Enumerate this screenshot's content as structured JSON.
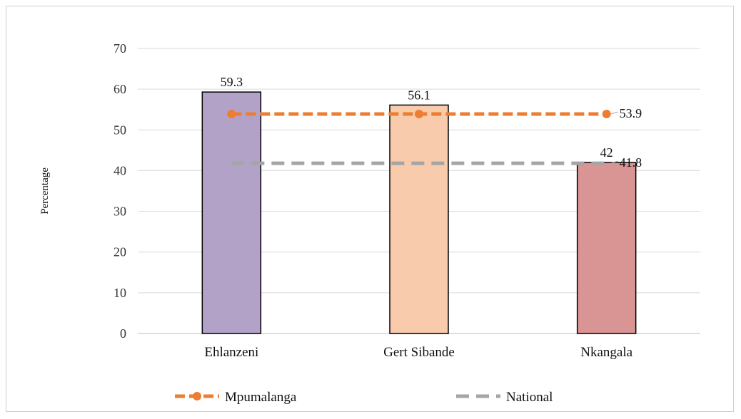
{
  "chart_data": {
    "type": "bar",
    "categories": [
      "Ehlanzeni",
      "Gert Sibande",
      "Nkangala"
    ],
    "bars": [
      {
        "category": "Ehlanzeni",
        "value": 59.3,
        "label": "59.3",
        "color": "#b3a2c7"
      },
      {
        "category": "Gert Sibande",
        "value": 56.1,
        "label": "56.1",
        "color": "#f8cbad"
      },
      {
        "category": "Nkangala",
        "value": 42,
        "label": "42",
        "color": "#d99594"
      }
    ],
    "lines": [
      {
        "name": "Mpumalanga",
        "value": 53.9,
        "label": "53.9",
        "color": "#ed7d31",
        "style": "dashed-with-markers"
      },
      {
        "name": "National",
        "value": 41.8,
        "label": "41.8",
        "color": "#a5a5a5",
        "style": "dashed"
      }
    ],
    "ylabel": "Percentage",
    "xlabel": "",
    "ylim": [
      0,
      70
    ],
    "yticks": [
      0,
      10,
      20,
      30,
      40,
      50,
      60,
      70
    ],
    "ytick_labels": [
      "0",
      "10",
      "20",
      "30",
      "40",
      "50",
      "60",
      "70"
    ],
    "grid": true,
    "legend_position": "bottom"
  }
}
